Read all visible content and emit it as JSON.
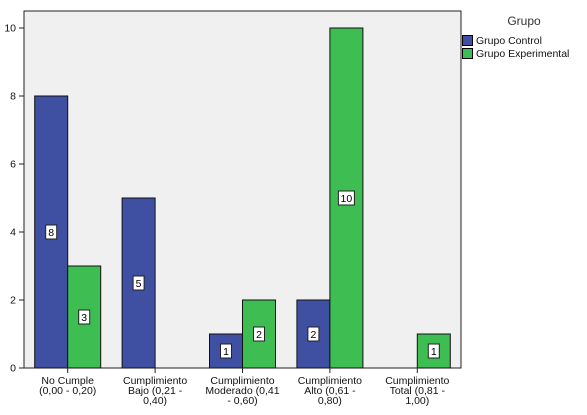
{
  "chart_data": {
    "type": "bar",
    "categories": [
      [
        "No Cumple",
        "(0,00 - 0,20)"
      ],
      [
        "Cumplimiento",
        "Bajo (0,21 -",
        "0,40)"
      ],
      [
        "Cumplimiento",
        "Moderado (0,41",
        "- 0,60)"
      ],
      [
        "Cumplimiento",
        "Alto (0,61 -",
        "0,80)"
      ],
      [
        "Cumplimiento",
        "Total (0,81 -",
        "1,00)"
      ]
    ],
    "series": [
      {
        "name": "Grupo Control",
        "color": "#3f4fa2",
        "values": [
          8,
          5,
          1,
          2,
          null
        ]
      },
      {
        "name": "Grupo Experimental",
        "color": "#3ebd52",
        "values": [
          3,
          null,
          2,
          10,
          1
        ]
      }
    ],
    "ylim": [
      0,
      10.5
    ],
    "yticks": [
      0,
      2,
      4,
      6,
      8,
      10
    ],
    "grid": false,
    "background": "#f0f0f0",
    "legend_title": "Grupo",
    "legend_position": "top-right",
    "data_labels": true
  }
}
